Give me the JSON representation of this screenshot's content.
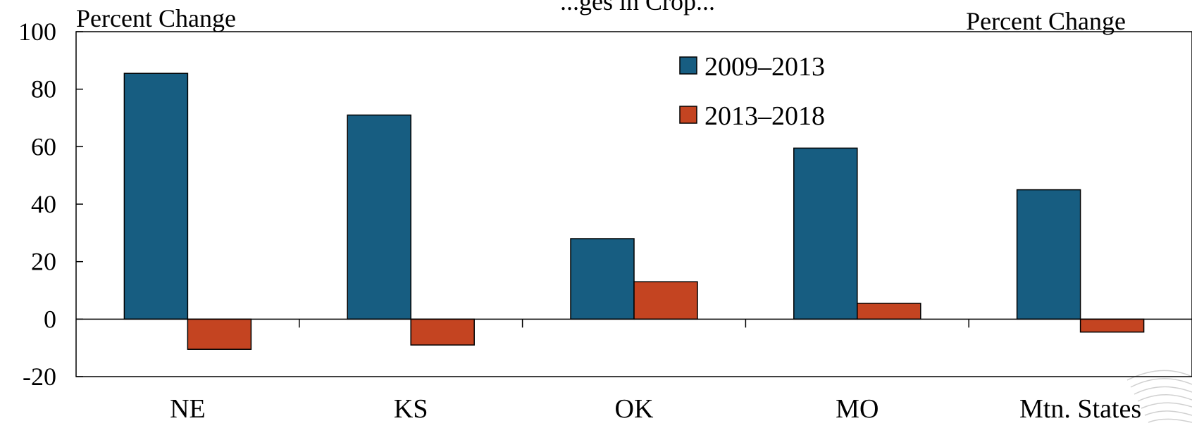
{
  "chart_data": {
    "type": "bar",
    "title": "...ges in Crop...",
    "ylabel_left": "Percent Change",
    "ylabel_right": "Percent Change",
    "categories": [
      "NE",
      "KS",
      "OK",
      "MO",
      "Mtn. States"
    ],
    "series": [
      {
        "name": "2009–2013",
        "values": [
          85.5,
          71,
          28,
          59.5,
          45
        ]
      },
      {
        "name": "2013–2018",
        "values": [
          -10.5,
          -9,
          13,
          5.5,
          -4.5
        ]
      }
    ],
    "ylim": [
      -20,
      100
    ],
    "yticks": [
      "-20",
      "0",
      "20",
      "40",
      "60",
      "80",
      "100"
    ],
    "ytick_values": [
      -20,
      0,
      20,
      40,
      60,
      80,
      100
    ],
    "legend_position": "top-center",
    "grid": false
  },
  "colors": {
    "series_1": "#175d81",
    "series_2": "#c44421",
    "axis": "#000000"
  }
}
